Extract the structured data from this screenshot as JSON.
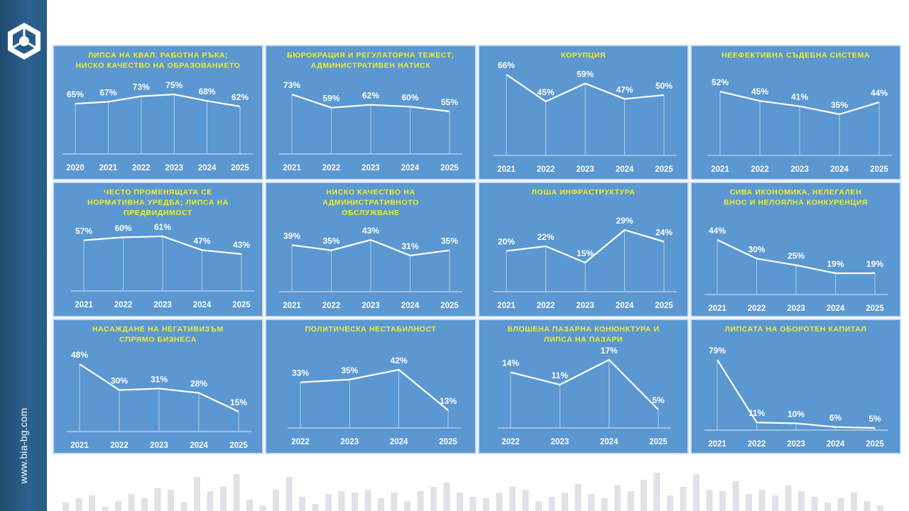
{
  "website": "www.bia-bg.com",
  "colors": {
    "panel": "#5b97d1",
    "title": "#f2ef2a",
    "text": "#ffffff",
    "line": "#ffffff",
    "sidebar": "#2a5b87"
  },
  "chart_data": [
    {
      "type": "line",
      "title": "ЛИПСА НА КВАЛ. РАБОТНА РЪКА; НИСКО КАЧЕСТВО НА ОБРАЗОВАНИЕТО",
      "title_lines": [
        "ЛИПСА НА КВАЛ. РАБОТНА РЪКА;",
        "НИСКО КАЧЕСТВО НА ОБРАЗОВАНИЕТО"
      ],
      "categories": [
        "2020",
        "2021",
        "2022",
        "2023",
        "2024",
        "2025"
      ],
      "values": [
        65,
        67,
        73,
        75,
        68,
        62
      ],
      "labels": [
        "65%",
        "67%",
        "73%",
        "75%",
        "68%",
        "62%"
      ]
    },
    {
      "type": "line",
      "title": "БЮРОКРАЦИЯ И РЕГУЛАТОРНА ТЕЖЕСТ; АДМИНИСТРАТИВЕН НАТИСК",
      "title_lines": [
        "БЮРОКРАЦИЯ И РЕГУЛАТОРНА ТЕЖЕСТ;",
        "АДМИНИСТРАТИВЕН НАТИСК"
      ],
      "categories": [
        "2021",
        "2022",
        "2023",
        "2024",
        "2025"
      ],
      "values": [
        73,
        59,
        62,
        60,
        55
      ],
      "labels": [
        "73%",
        "59%",
        "62%",
        "60%",
        "55%"
      ]
    },
    {
      "type": "line",
      "title": "КОРУПЦИЯ",
      "title_lines": [
        "КОРУПЦИЯ"
      ],
      "categories": [
        "2021",
        "2022",
        "2023",
        "2024",
        "2025"
      ],
      "values": [
        66,
        45,
        59,
        47,
        50
      ],
      "labels": [
        "66%",
        "45%",
        "59%",
        "47%",
        "50%"
      ]
    },
    {
      "type": "line",
      "title": "НЕЕФЕКТИВНА СЪДЕБНА СИСТЕМА",
      "title_lines": [
        "НЕЕФЕКТИВНА СЪДЕБНА СИСТЕМА"
      ],
      "categories": [
        "2021",
        "2022",
        "2023",
        "2024",
        "2025"
      ],
      "values": [
        52,
        45,
        41,
        35,
        44
      ],
      "labels": [
        "52%",
        "45%",
        "41%",
        "35%",
        "44%"
      ]
    },
    {
      "type": "line",
      "title": "ЧЕСТО ПРОМЕНЯЩАТА СЕ НОРМАТИВНА УРЕДБА; ЛИПСА НА ПРЕДВИДИМОСТ",
      "title_lines": [
        "ЧЕСТО ПРОМЕНЯЩАТА СЕ",
        "НОРМАТИВНА УРЕДБА; ЛИПСА НА",
        "ПРЕДВИДИМОСТ"
      ],
      "categories": [
        "2021",
        "2022",
        "2023",
        "2024",
        "2025"
      ],
      "values": [
        57,
        60,
        61,
        47,
        43
      ],
      "labels": [
        "57%",
        "60%",
        "61%",
        "47%",
        "43%"
      ]
    },
    {
      "type": "line",
      "title": "НИСКО КАЧЕСТВО НА АДМИНИСТРАТИВНОТО ОБСЛУЖВАНЕ",
      "title_lines": [
        "НИСКО КАЧЕСТВО НА",
        "АДМИНИСТРАТИВНОТО",
        "ОБСЛУЖВАНЕ"
      ],
      "categories": [
        "2021",
        "2022",
        "2023",
        "2024",
        "2025"
      ],
      "values": [
        39,
        35,
        43,
        31,
        35
      ],
      "labels": [
        "39%",
        "35%",
        "43%",
        "31%",
        "35%"
      ]
    },
    {
      "type": "line",
      "title": "ЛОША ИНФРАСТРУКТУРА",
      "title_lines": [
        "ЛОША ИНФРАСТРУКТУРА"
      ],
      "categories": [
        "2021",
        "2022",
        "2023",
        "2024",
        "2025"
      ],
      "values": [
        20,
        22,
        15,
        29,
        24
      ],
      "labels": [
        "20%",
        "22%",
        "15%",
        "29%",
        "24%"
      ]
    },
    {
      "type": "line",
      "title": "СИВА ИКОНОМИКА, НЕЛЕГАЛЕН ВНОС И НЕЛОЯЛНА КОНКУРЕНЦИЯ",
      "title_lines": [
        "СИВА ИКОНОМИКА, НЕЛЕГАЛЕН",
        "ВНОС И НЕЛОЯЛНА КОНКУРЕНЦИЯ"
      ],
      "categories": [
        "2021",
        "2022",
        "2023",
        "2024",
        "2025"
      ],
      "values": [
        44,
        30,
        25,
        19,
        19
      ],
      "labels": [
        "44%",
        "30%",
        "25%",
        "19%",
        "19%"
      ]
    },
    {
      "type": "line",
      "title": "НАСАЖДАНЕ НА НЕГАТИВИЗЪМ СПРЯМО БИЗНЕСА",
      "title_lines": [
        "НАСАЖДАНЕ НА НЕГАТИВИЗЪМ",
        "СПРЯМО БИЗНЕСА"
      ],
      "categories": [
        "2021",
        "2022",
        "2023",
        "2024",
        "2025"
      ],
      "values": [
        48,
        30,
        31,
        28,
        15
      ],
      "labels": [
        "48%",
        "30%",
        "31%",
        "28%",
        "15%"
      ]
    },
    {
      "type": "line",
      "title": "ПОЛИТИЧЕСКА НЕСТАБИЛНОСТ",
      "title_lines": [
        "ПОЛИТИЧЕСКА НЕСТАБИЛНОСТ"
      ],
      "categories": [
        "2022",
        "2023",
        "2024",
        "2025"
      ],
      "values": [
        33,
        35,
        42,
        13
      ],
      "labels": [
        "33%",
        "35%",
        "42%",
        "13%"
      ]
    },
    {
      "type": "line",
      "title": "ВЛОШЕНА ПАЗАРНА КОНЮНКТУРА И ЛИПСА НА ПАЗАРИ",
      "title_lines": [
        "ВЛОШЕНА ПАЗАРНА КОНЮНКТУРА И",
        "ЛИПСА НА ПАЗАРИ"
      ],
      "categories": [
        "2022",
        "2023",
        "2024",
        "2025"
      ],
      "values": [
        14,
        11,
        17,
        5
      ],
      "labels": [
        "14%",
        "11%",
        "17%",
        "5%"
      ]
    },
    {
      "type": "line",
      "title": "ЛИПСАТА НА ОБОРОТЕН КАПИТАЛ",
      "title_lines": [
        "ЛИПСАТА НА ОБОРОТЕН КАПИТАЛ"
      ],
      "categories": [
        "2021",
        "2022",
        "2023",
        "2024",
        "2025"
      ],
      "values": [
        79,
        11,
        10,
        6,
        5
      ],
      "labels": [
        "79%",
        "11%",
        "10%",
        "6%",
        "5%"
      ]
    }
  ]
}
